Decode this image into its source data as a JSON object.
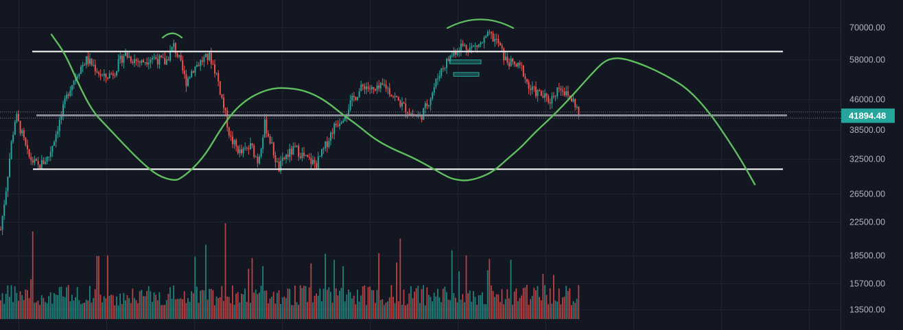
{
  "chart_data": {
    "type": "candlestick",
    "y_axis": {
      "scale": "log",
      "ticks": [
        "70000.00",
        "58000.00",
        "46000.00",
        "38500.00",
        "32500.00",
        "26500.00",
        "22500.00",
        "18500.00",
        "15700.00",
        "13500.00"
      ],
      "tick_values": [
        70000,
        58000,
        46000,
        38500,
        32500,
        26500,
        22500,
        18500,
        15700,
        13500
      ],
      "range": [
        12300,
        82000
      ]
    },
    "last_price": {
      "label": "41894.48",
      "value": 41894.48,
      "color": "#26a69a"
    },
    "price_path_keypoints": [
      [
        0,
        21500
      ],
      [
        8,
        27500
      ],
      [
        15,
        35000
      ],
      [
        22,
        42000
      ],
      [
        30,
        38000
      ],
      [
        40,
        33000
      ],
      [
        55,
        31000
      ],
      [
        70,
        33000
      ],
      [
        85,
        40000
      ],
      [
        100,
        49000
      ],
      [
        115,
        55000
      ],
      [
        125,
        58000
      ],
      [
        135,
        56000
      ],
      [
        150,
        52000
      ],
      [
        165,
        54000
      ],
      [
        180,
        60000
      ],
      [
        190,
        58500
      ],
      [
        205,
        57000
      ],
      [
        220,
        59000
      ],
      [
        240,
        57000
      ],
      [
        252,
        63000
      ],
      [
        260,
        58000
      ],
      [
        270,
        51000
      ],
      [
        280,
        55000
      ],
      [
        295,
        58000
      ],
      [
        305,
        59000
      ],
      [
        315,
        53000
      ],
      [
        325,
        44000
      ],
      [
        335,
        36500
      ],
      [
        350,
        33500
      ],
      [
        365,
        35000
      ],
      [
        375,
        32000
      ],
      [
        385,
        40000
      ],
      [
        395,
        35000
      ],
      [
        405,
        30500
      ],
      [
        415,
        33000
      ],
      [
        430,
        34500
      ],
      [
        445,
        32500
      ],
      [
        460,
        31500
      ],
      [
        470,
        34000
      ],
      [
        485,
        39000
      ],
      [
        500,
        42000
      ],
      [
        515,
        46500
      ],
      [
        530,
        50000
      ],
      [
        545,
        48000
      ],
      [
        560,
        50000
      ],
      [
        572,
        47000
      ],
      [
        585,
        44500
      ],
      [
        600,
        42000
      ],
      [
        612,
        41500
      ],
      [
        625,
        46000
      ],
      [
        640,
        54000
      ],
      [
        655,
        59000
      ],
      [
        670,
        63000
      ],
      [
        685,
        62000
      ],
      [
        700,
        63500
      ],
      [
        712,
        67000
      ],
      [
        725,
        64000
      ],
      [
        735,
        58000
      ],
      [
        745,
        56500
      ],
      [
        760,
        55000
      ],
      [
        770,
        49000
      ],
      [
        785,
        47500
      ],
      [
        800,
        45500
      ],
      [
        815,
        50000
      ],
      [
        825,
        47000
      ],
      [
        835,
        45500
      ],
      [
        845,
        41894
      ]
    ],
    "price_series_x_end": 845,
    "colors": {
      "up": "#26a69a",
      "down": "#ef5350",
      "annotation": "#5fbf5f",
      "level_line": "#e6e6e6",
      "background": "#131722",
      "grid": "#1f2330"
    },
    "horizontal_levels": [
      {
        "value": 60800,
        "x_start": 47,
        "x_end": 1141
      },
      {
        "value": 41894.48,
        "x_start": 53,
        "x_end": 1147
      },
      {
        "value": 30600,
        "x_start": 48,
        "x_end": 1141
      }
    ],
    "annotation_curve": [
      [
        75,
        235000
      ],
      [
        95,
        210000
      ],
      [
        115,
        175000
      ],
      [
        135,
        150000
      ],
      [
        155,
        138000
      ],
      [
        180,
        124000
      ],
      [
        205,
        112000
      ],
      [
        230,
        103000
      ],
      [
        255,
        100000
      ],
      [
        265,
        102000
      ],
      [
        280,
        107000
      ],
      [
        300,
        117000
      ],
      [
        320,
        134000
      ],
      [
        340,
        150000
      ],
      [
        360,
        161000
      ],
      [
        380,
        168000
      ],
      [
        400,
        172000
      ],
      [
        420,
        172000
      ],
      [
        440,
        170000
      ],
      [
        460,
        165000
      ],
      [
        480,
        157000
      ],
      [
        500,
        147000
      ],
      [
        520,
        139000
      ],
      [
        545,
        128000
      ],
      [
        570,
        121000
      ],
      [
        600,
        115000
      ],
      [
        625,
        109000
      ],
      [
        645,
        104000
      ],
      [
        660,
        101000
      ],
      [
        680,
        100000
      ],
      [
        700,
        102000
      ],
      [
        720,
        106000
      ],
      [
        740,
        114000
      ],
      [
        760,
        122000
      ],
      [
        780,
        133000
      ],
      [
        800,
        143000
      ],
      [
        820,
        155000
      ],
      [
        840,
        169000
      ],
      [
        860,
        185000
      ],
      [
        880,
        201000
      ],
      [
        895,
        205000
      ],
      [
        910,
        204000
      ],
      [
        930,
        199000
      ],
      [
        955,
        191000
      ],
      [
        980,
        181000
      ],
      [
        1000,
        172000
      ],
      [
        1020,
        159000
      ],
      [
        1040,
        144000
      ],
      [
        1060,
        128000
      ],
      [
        1080,
        113000
      ],
      [
        1100,
        98000
      ]
    ],
    "annotation_arcs": [
      {
        "cx": 251,
        "cy": 52,
        "rx": 14,
        "ry": 6
      },
      {
        "cx": 700,
        "cy": 35,
        "rx": 48,
        "ry": 12
      }
    ],
    "annotation_boxes": [
      {
        "x_from": 655,
        "x_to": 701,
        "value_top": 57900,
        "value_bottom": 56600
      },
      {
        "x_from": 661,
        "x_to": 698,
        "value_top": 53800,
        "value_bottom": 52600
      }
    ]
  }
}
